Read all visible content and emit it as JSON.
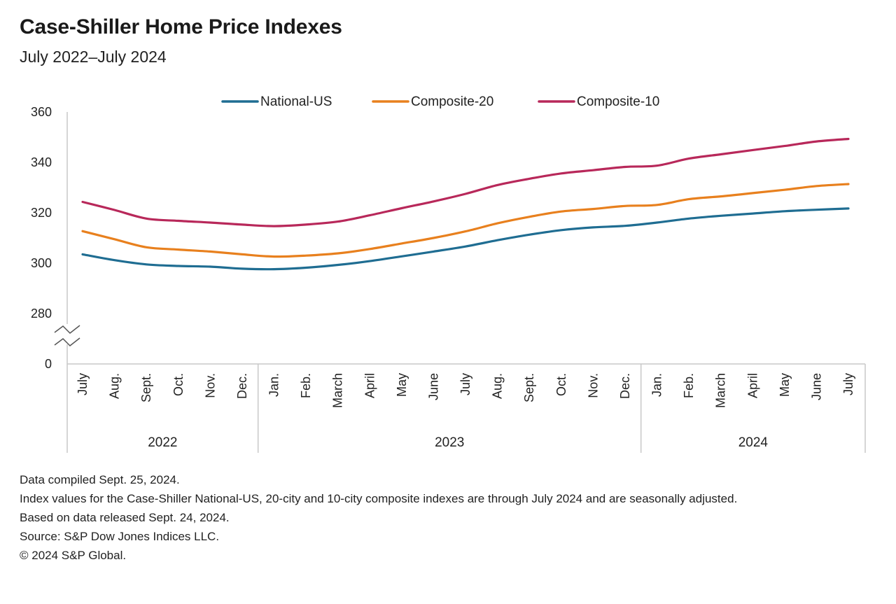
{
  "title": "Case-Shiller Home Price Indexes",
  "subtitle": "July 2022–July 2024",
  "notes": [
    "Data compiled Sept. 25, 2024.",
    "Index values for the Case-Shiller National-US, 20-city and 10-city composite indexes are through July 2024 and are seasonally adjusted.",
    "Based on data released Sept. 24, 2024.",
    "Source: S&P Dow Jones Indices LLC.",
    "© 2024 S&P Global."
  ],
  "colors": {
    "national": "#1f6d92",
    "composite20": "#e8801e",
    "composite10": "#b8285a",
    "axis": "#c8c8c8"
  },
  "chart_data": {
    "type": "line",
    "title": "",
    "xlabel": "",
    "ylabel": "",
    "ylim": [
      280,
      360
    ],
    "y_ticks": [
      "0",
      "280",
      "300",
      "320",
      "340",
      "360"
    ],
    "axis_break": true,
    "grid": false,
    "legend_position": "top",
    "categories": [
      "July",
      "Aug.",
      "Sept.",
      "Oct.",
      "Nov.",
      "Dec.",
      "Jan.",
      "Feb.",
      "March",
      "April",
      "May",
      "June",
      "July",
      "Aug.",
      "Sept.",
      "Oct.",
      "Nov.",
      "Dec.",
      "Jan.",
      "Feb.",
      "March",
      "April",
      "May",
      "June",
      "July"
    ],
    "years": [
      {
        "label": "2022",
        "start": 0,
        "end": 5
      },
      {
        "label": "2023",
        "start": 6,
        "end": 17
      },
      {
        "label": "2024",
        "start": 18,
        "end": 24
      }
    ],
    "series": [
      {
        "name": "National-US",
        "color": "#1f6d92",
        "values": [
          303.5,
          301.2,
          299.5,
          298.9,
          298.6,
          297.8,
          297.6,
          298.2,
          299.3,
          300.8,
          302.7,
          304.6,
          306.6,
          309.1,
          311.3,
          313.1,
          314.2,
          314.8,
          316.1,
          317.7,
          318.8,
          319.7,
          320.6,
          321.2,
          321.7
        ]
      },
      {
        "name": "Composite-20",
        "color": "#e8801e",
        "values": [
          312.7,
          309.5,
          306.3,
          305.4,
          304.6,
          303.5,
          302.6,
          303.0,
          303.9,
          305.6,
          307.8,
          310.0,
          312.6,
          315.8,
          318.4,
          320.5,
          321.5,
          322.7,
          323.1,
          325.4,
          326.5,
          327.8,
          329.1,
          330.6,
          331.4
        ]
      },
      {
        "name": "Composite-10",
        "color": "#b8285a",
        "values": [
          324.3,
          321.1,
          317.7,
          316.8,
          316.1,
          315.3,
          314.7,
          315.3,
          316.5,
          319.0,
          321.8,
          324.5,
          327.5,
          331.0,
          333.5,
          335.6,
          336.9,
          338.2,
          338.7,
          341.5,
          343.2,
          344.9,
          346.5,
          348.3,
          349.3
        ]
      }
    ]
  }
}
